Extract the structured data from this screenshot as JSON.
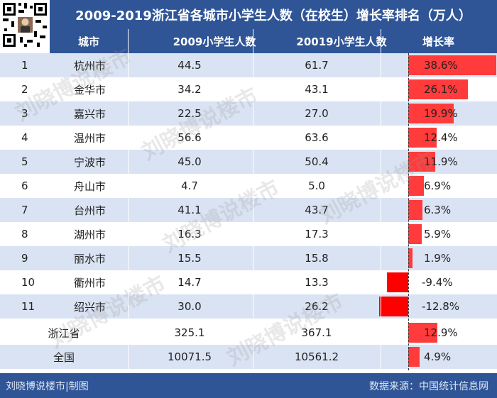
{
  "title": "2009-2019浙江省各城市小学生人数（在校生）增长率排名（万人）",
  "columns": {
    "city": "城市",
    "y2009": "2009小学生人数",
    "y2019": "20019小学生人数",
    "growth": "增长率"
  },
  "colors": {
    "header": "#2f5597",
    "row_a": "#dae3f3",
    "row_b": "#ffffff",
    "bar": "#ff3b3b"
  },
  "watermark": "刘晓博说楼市",
  "footer": {
    "left": "刘晓博说楼市|制图",
    "right": "数据来源：中国统计信息网"
  },
  "chart_data": {
    "type": "table",
    "title": "2009-2019浙江省各城市小学生人数（在校生）增长率排名（万人）",
    "rows": [
      {
        "rank": "1",
        "city": "杭州市",
        "v2009": "44.5",
        "v2019": "61.7",
        "growth_label": "38.6%",
        "growth": 38.6
      },
      {
        "rank": "2",
        "city": "金华市",
        "v2009": "34.2",
        "v2019": "43.1",
        "growth_label": "26.1%",
        "growth": 26.1
      },
      {
        "rank": "3",
        "city": "嘉兴市",
        "v2009": "22.5",
        "v2019": "27.0",
        "growth_label": "19.9%",
        "growth": 19.9
      },
      {
        "rank": "4",
        "city": "温州市",
        "v2009": "56.6",
        "v2019": "63.6",
        "growth_label": "12.4%",
        "growth": 12.4
      },
      {
        "rank": "5",
        "city": "宁波市",
        "v2009": "45.0",
        "v2019": "50.4",
        "growth_label": "11.9%",
        "growth": 11.9
      },
      {
        "rank": "6",
        "city": "舟山市",
        "v2009": "4.7",
        "v2019": "5.0",
        "growth_label": "6.9%",
        "growth": 6.9
      },
      {
        "rank": "7",
        "city": "台州市",
        "v2009": "41.1",
        "v2019": "43.7",
        "growth_label": "6.3%",
        "growth": 6.3
      },
      {
        "rank": "8",
        "city": "湖州市",
        "v2009": "16.3",
        "v2019": "17.3",
        "growth_label": "5.9%",
        "growth": 5.9
      },
      {
        "rank": "9",
        "city": "丽水市",
        "v2009": "15.5",
        "v2019": "15.8",
        "growth_label": "1.9%",
        "growth": 1.9
      },
      {
        "rank": "10",
        "city": "衢州市",
        "v2009": "14.7",
        "v2019": "13.3",
        "growth_label": "-9.4%",
        "growth": -9.4
      },
      {
        "rank": "11",
        "city": "绍兴市",
        "v2009": "30.0",
        "v2019": "26.2",
        "growth_label": "-12.8%",
        "growth": -12.8
      }
    ],
    "totals": [
      {
        "rank": "",
        "city": "浙江省",
        "v2009": "325.1",
        "v2019": "367.1",
        "growth_label": "12.9%",
        "growth": 12.9
      },
      {
        "rank": "",
        "city": "全国",
        "v2009": "10071.5",
        "v2019": "10561.2",
        "growth_label": "4.9%",
        "growth": 4.9
      }
    ]
  }
}
